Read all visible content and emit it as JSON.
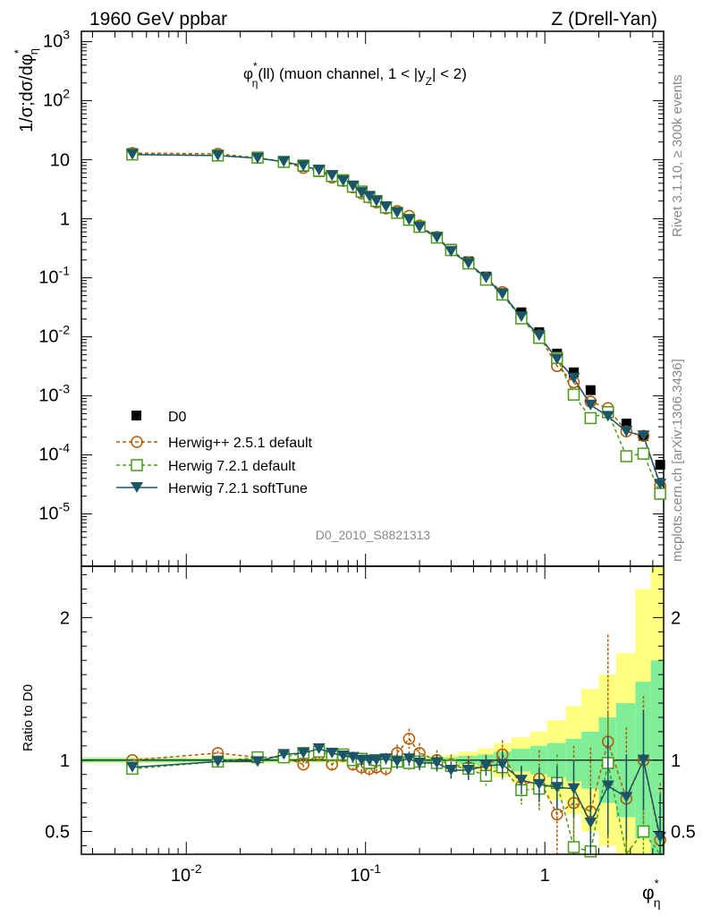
{
  "header": {
    "left": "1960 GeV ppbar",
    "right": "Z (Drell-Yan)"
  },
  "side": {
    "rivet": "Rivet 3.1.10, ≥ 300k events",
    "mcplots": "mcplots.cern.ch [arXiv:1306.3436]"
  },
  "analysis_id": "D0_2010_S8821313",
  "colors": {
    "data": "#000000",
    "herwigpp": "#b35900",
    "herwig72": "#4a9a1a",
    "softtune": "#1c5468",
    "band_yellow": "#ffff80",
    "band_green": "#80ee99"
  },
  "chart_data": [
    {
      "type": "line",
      "title": "φ*η(ll) (muon channel, 1 < |yZ| < 2)",
      "title_parts": {
        "phi": "φ",
        "star": "*",
        "sub": "η",
        "ll": "(ll) (muon channel, 1 < |y",
        "z": "Z",
        "rest": "| < 2)"
      },
      "ylabel": "1/σ;dσ/dφ*η",
      "ylabel_parts": {
        "main": "1/σ;dσ/dφ",
        "star": "*",
        "sub": "η"
      },
      "xscale": "log",
      "yscale": "log",
      "xlim": [
        0.0026,
        4.6
      ],
      "ylim": [
        1.3e-06,
        1500
      ],
      "x_ticks": [
        "10^-2",
        "10^-1",
        "1"
      ],
      "y_ticks": [
        "10^-5",
        "10^-4",
        "10^-3",
        "10^-2",
        "10^-1",
        "1",
        "10",
        "10^2",
        "10^3"
      ],
      "legend_position": "lower-left",
      "x": [
        0.005,
        0.015,
        0.025,
        0.035,
        0.045,
        0.055,
        0.065,
        0.075,
        0.085,
        0.095,
        0.105,
        0.115,
        0.13,
        0.15,
        0.175,
        0.2,
        0.25,
        0.3,
        0.375,
        0.47,
        0.58,
        0.74,
        0.93,
        1.17,
        1.45,
        1.8,
        2.25,
        2.85,
        3.55,
        4.4
      ],
      "series": [
        {
          "name": "D0",
          "marker": "filled-square",
          "line": "none",
          "values": [
            13.0,
            12.0,
            10.6,
            9.0,
            7.6,
            6.2,
            5.1,
            4.3,
            3.5,
            2.85,
            2.4,
            2.0,
            1.6,
            1.28,
            0.98,
            0.74,
            0.49,
            0.31,
            0.19,
            0.105,
            0.055,
            0.026,
            0.012,
            0.0052,
            0.0025,
            0.00125,
            0.00055,
            0.00034,
            0.00021,
            6.8e-05
          ]
        },
        {
          "name": "Herwig++ 2.5.1 default",
          "marker": "open-circle",
          "line": "dashed",
          "values": [
            13.0,
            12.6,
            10.8,
            9.2,
            7.3,
            6.4,
            5.0,
            4.4,
            3.4,
            2.7,
            2.3,
            1.9,
            1.5,
            1.35,
            1.12,
            0.77,
            0.49,
            0.3,
            0.18,
            0.1,
            0.057,
            0.021,
            0.0105,
            0.0032,
            0.0017,
            0.0008,
            0.00062,
            0.00025,
            0.00021,
            3e-05
          ]
        },
        {
          "name": "Herwig 7.2.1 default",
          "marker": "open-square",
          "line": "dashed",
          "values": [
            12.3,
            11.8,
            10.9,
            9.2,
            8.0,
            6.5,
            5.3,
            4.5,
            3.5,
            2.9,
            2.35,
            2.0,
            1.56,
            1.26,
            0.96,
            0.73,
            0.48,
            0.295,
            0.175,
            0.093,
            0.052,
            0.0205,
            0.0096,
            0.0044,
            0.00105,
            0.00042,
            0.00053,
            9.5e-05,
            0.000105,
            2.2e-05
          ]
        },
        {
          "name": "Herwig 7.2.1 softTune",
          "marker": "filled-triangle-down",
          "line": "solid",
          "values": [
            12.3,
            11.8,
            10.6,
            9.3,
            7.9,
            6.7,
            5.4,
            4.4,
            3.6,
            2.8,
            2.4,
            2.0,
            1.6,
            1.27,
            0.96,
            0.72,
            0.48,
            0.28,
            0.175,
            0.1,
            0.053,
            0.022,
            0.0105,
            0.0042,
            0.002,
            0.0007,
            0.00045,
            0.00025,
            0.00021,
            3.2e-05
          ]
        }
      ]
    },
    {
      "type": "line",
      "title": "",
      "ylabel": "Ratio to D0",
      "xlabel": "φ*η",
      "xlabel_parts": {
        "phi": "φ",
        "star": "*",
        "sub": "η"
      },
      "xscale": "log",
      "yscale": "linear",
      "xlim": [
        0.0026,
        4.6
      ],
      "ylim": [
        0.34,
        2.36
      ],
      "y_ticks": [
        "0.5",
        "1",
        "2"
      ],
      "ytick_values": [
        0.5,
        1,
        2
      ],
      "reference_line": 1,
      "bin_edges": [
        0.0026,
        0.01,
        0.02,
        0.03,
        0.04,
        0.05,
        0.06,
        0.07,
        0.08,
        0.09,
        0.1,
        0.11,
        0.12,
        0.14,
        0.16,
        0.19,
        0.22,
        0.28,
        0.33,
        0.42,
        0.52,
        0.65,
        0.83,
        1.03,
        1.31,
        1.6,
        2.0,
        2.5,
        3.2,
        3.9,
        4.6
      ],
      "band_green_halfwidth": [
        0.015,
        0.012,
        0.012,
        0.012,
        0.012,
        0.012,
        0.012,
        0.012,
        0.012,
        0.012,
        0.012,
        0.012,
        0.012,
        0.012,
        0.012,
        0.015,
        0.018,
        0.02,
        0.03,
        0.04,
        0.06,
        0.08,
        0.1,
        0.12,
        0.15,
        0.2,
        0.3,
        0.4,
        0.55,
        0.7
      ],
      "band_yellow_halfwidth": [
        0.02,
        0.018,
        0.018,
        0.018,
        0.018,
        0.018,
        0.018,
        0.018,
        0.018,
        0.018,
        0.018,
        0.018,
        0.018,
        0.018,
        0.02,
        0.025,
        0.03,
        0.04,
        0.06,
        0.08,
        0.12,
        0.16,
        0.2,
        0.28,
        0.38,
        0.5,
        0.6,
        0.75,
        1.2,
        1.4
      ],
      "x": [
        0.005,
        0.015,
        0.025,
        0.035,
        0.045,
        0.055,
        0.065,
        0.075,
        0.085,
        0.095,
        0.105,
        0.115,
        0.13,
        0.15,
        0.175,
        0.2,
        0.25,
        0.3,
        0.375,
        0.47,
        0.58,
        0.74,
        0.93,
        1.17,
        1.45,
        1.8,
        2.25,
        2.85,
        3.55,
        4.4
      ],
      "series": [
        {
          "name": "Herwig++ 2.5.1 default",
          "marker": "open-circle",
          "line": "dashed",
          "values": [
            1.0,
            1.05,
            1.02,
            1.02,
            0.97,
            1.04,
            0.97,
            1.03,
            0.97,
            0.95,
            0.94,
            0.95,
            0.94,
            1.05,
            1.15,
            1.05,
            1.0,
            0.97,
            0.95,
            0.95,
            1.04,
            0.82,
            0.87,
            0.62,
            0.7,
            0.64,
            1.13,
            0.73,
            1.0,
            0.44
          ],
          "errors": [
            0.01,
            0.015,
            0.015,
            0.02,
            0.03,
            0.04,
            0.04,
            0.04,
            0.04,
            0.05,
            0.05,
            0.05,
            0.05,
            0.06,
            0.07,
            0.07,
            0.07,
            0.07,
            0.08,
            0.09,
            0.1,
            0.13,
            0.2,
            0.3,
            0.4,
            0.45,
            0.75,
            0.5,
            0.45,
            0.4
          ]
        },
        {
          "name": "Herwig 7.2.1 default",
          "marker": "open-square",
          "line": "dashed",
          "values": [
            0.94,
            0.99,
            1.02,
            1.02,
            1.05,
            1.06,
            1.04,
            1.04,
            1.0,
            1.01,
            0.98,
            1.0,
            0.98,
            0.99,
            0.98,
            0.99,
            0.98,
            0.96,
            0.94,
            0.89,
            0.95,
            0.79,
            0.8,
            0.84,
            0.39,
            0.36,
            0.98,
            0.32,
            0.5,
            0.33
          ],
          "errors": [
            0.01,
            0.015,
            0.015,
            0.02,
            0.03,
            0.03,
            0.03,
            0.03,
            0.04,
            0.04,
            0.04,
            0.04,
            0.04,
            0.05,
            0.05,
            0.05,
            0.06,
            0.06,
            0.07,
            0.07,
            0.09,
            0.1,
            0.15,
            0.2,
            0.25,
            0.3,
            0.35,
            0.3,
            0.3,
            0.3
          ]
        },
        {
          "name": "Herwig 7.2.1 softTune",
          "marker": "filled-triangle-down",
          "line": "solid",
          "values": [
            0.95,
            0.99,
            0.99,
            1.04,
            1.05,
            1.08,
            1.05,
            1.03,
            1.02,
            1.0,
            1.0,
            1.0,
            1.01,
            0.99,
            1.01,
            0.98,
            0.98,
            0.93,
            0.93,
            0.96,
            0.97,
            0.86,
            0.83,
            0.81,
            0.8,
            0.56,
            0.82,
            0.74,
            1.0,
            0.46
          ],
          "errors": [
            0.01,
            0.015,
            0.015,
            0.02,
            0.03,
            0.03,
            0.03,
            0.03,
            0.04,
            0.04,
            0.04,
            0.04,
            0.04,
            0.05,
            0.05,
            0.05,
            0.06,
            0.06,
            0.07,
            0.07,
            0.09,
            0.1,
            0.12,
            0.15,
            0.2,
            0.25,
            0.35,
            0.3,
            0.35,
            0.3
          ]
        }
      ]
    }
  ]
}
